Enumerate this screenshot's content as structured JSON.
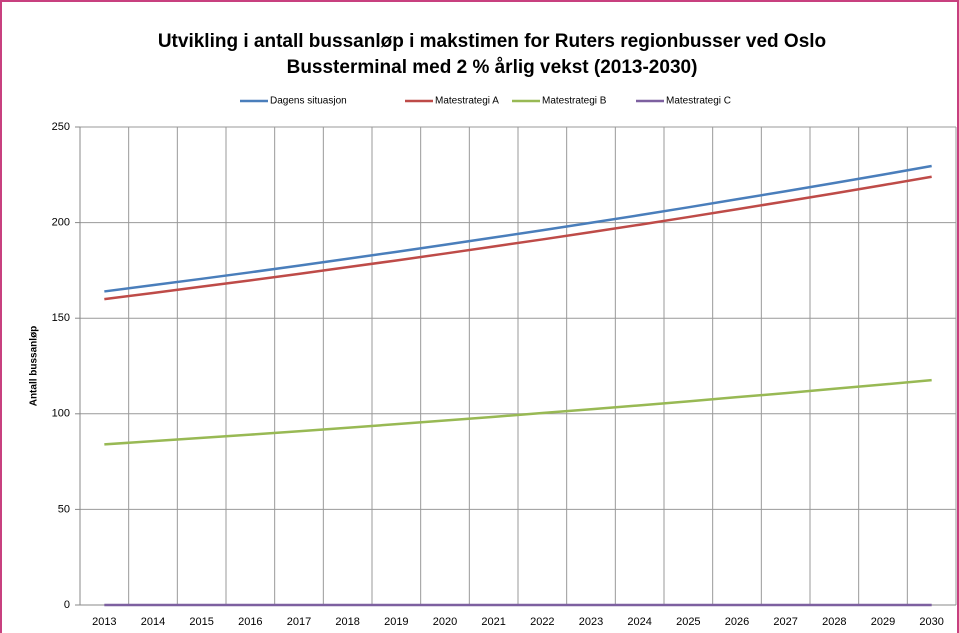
{
  "chart_data": {
    "type": "line",
    "title": [
      "Utvikling i antall bussanløp i makstimen for Ruters regionbusser ved Oslo",
      "Bussterminal med 2 % årlig vekst (2013-2030)"
    ],
    "y_label": "Antall bussanløp",
    "categories": [
      "2013",
      "2014",
      "2015",
      "2016",
      "2017",
      "2018",
      "2019",
      "2020",
      "2021",
      "2022",
      "2023",
      "2024",
      "2025",
      "2026",
      "2027",
      "2028",
      "2029",
      "2030"
    ],
    "series": [
      {
        "name": "Dagens situasjon",
        "color": "#4a7ebb",
        "values": [
          164,
          167.3,
          170.6,
          174.0,
          177.5,
          181.1,
          184.7,
          188.4,
          192.2,
          196.0,
          199.9,
          203.9,
          208.0,
          212.2,
          216.4,
          220.7,
          225.1,
          229.6
        ]
      },
      {
        "name": "Matestrategi A",
        "color": "#be4b48",
        "values": [
          160,
          163.2,
          166.5,
          169.8,
          173.2,
          176.7,
          180.2,
          183.8,
          187.5,
          191.2,
          195.0,
          198.9,
          202.9,
          207.0,
          211.1,
          215.3,
          219.6,
          224.0
        ]
      },
      {
        "name": "Matestrategi B",
        "color": "#98b954",
        "values": [
          84,
          85.7,
          87.4,
          89.1,
          90.9,
          92.7,
          94.6,
          96.5,
          98.4,
          100.4,
          102.4,
          104.4,
          106.5,
          108.7,
          110.8,
          113.1,
          115.3,
          117.6
        ]
      },
      {
        "name": "Matestrategi C",
        "color": "#7d60a0",
        "values": [
          0,
          0,
          0,
          0,
          0,
          0,
          0,
          0,
          0,
          0,
          0,
          0,
          0,
          0,
          0,
          0,
          0,
          0
        ]
      }
    ],
    "ylim": [
      0,
      250
    ],
    "yticks": [
      0,
      50,
      100,
      150,
      200,
      250
    ],
    "grid": true,
    "legend": "top"
  }
}
